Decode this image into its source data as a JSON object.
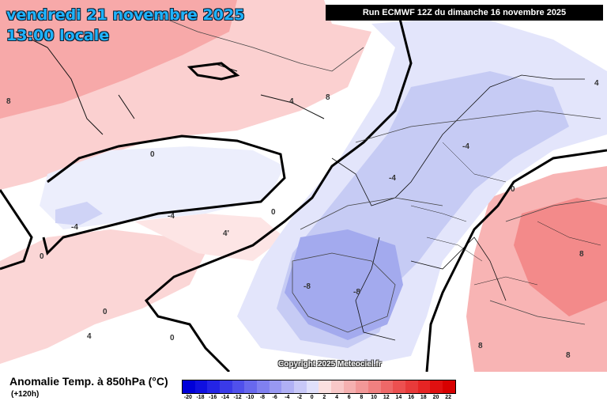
{
  "header": {
    "date_line": "vendredi 21 novembre 2025",
    "time_line": "13:00 locale",
    "run_info": "Run ECMWF 12Z du dimanche 16 novembre 2025"
  },
  "map": {
    "copyright": "Copyright 2025 Meteociel.fr",
    "contour_labels": [
      "0",
      "4",
      "8",
      "-4",
      "-8",
      "4'",
      "-4"
    ],
    "colors": {
      "warm_light": "#fde3e3",
      "warm_mid": "#f9b8b8",
      "warm_strong": "#f38a8a",
      "cold_light": "#e4e6fb",
      "cold_mid": "#c3c8f4",
      "cold_strong": "#9aa2ec"
    }
  },
  "legend": {
    "title": "Anomalie Temp. à 850hPa (°C)",
    "subtitle": "(+120h)",
    "ticks": [
      "-20",
      "-18",
      "-16",
      "-14",
      "-12",
      "-10",
      "-8",
      "-6",
      "-4",
      "-2",
      "0",
      "2",
      "4",
      "6",
      "8",
      "10",
      "12",
      "14",
      "16",
      "18",
      "20",
      "22"
    ],
    "colors": [
      "#0000d8",
      "#1010e0",
      "#2424e6",
      "#3a3ae8",
      "#5050ec",
      "#6868ee",
      "#8080f0",
      "#9898f2",
      "#b0b0f5",
      "#c8c8f8",
      "#e0e0fb",
      "#fbe0e0",
      "#f8c8c8",
      "#f5b0b0",
      "#f29898",
      "#f08080",
      "#ee6868",
      "#ec5050",
      "#e83a3a",
      "#e62424",
      "#e01010",
      "#d80000"
    ]
  }
}
